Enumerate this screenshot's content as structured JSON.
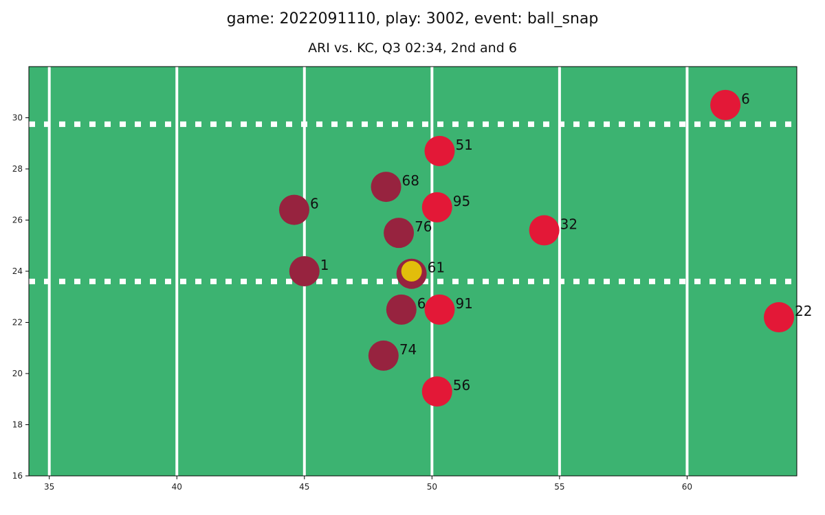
{
  "chart_data": {
    "type": "scatter",
    "title": "game: 2022091110, play: 3002, event: ball_snap",
    "subtitle": "ARI vs. KC, Q3 02:34, 2nd and 6",
    "xlim": [
      34.2,
      64.3
    ],
    "ylim": [
      16,
      32
    ],
    "xticks": [
      35,
      40,
      45,
      50,
      55,
      60
    ],
    "yticks": [
      16,
      18,
      20,
      22,
      24,
      26,
      28,
      30
    ],
    "yard_lines": [
      35,
      40,
      45,
      50,
      55,
      60
    ],
    "hash_lines": [
      23.6,
      29.75
    ],
    "grid": false,
    "colors": {
      "field": "#3cb371",
      "lines": "#ffffff",
      "home": "#97233f",
      "away": "#e31837",
      "ball": "#e2bd0b"
    },
    "series": [
      {
        "team": "home",
        "points": [
          {
            "x": 44.6,
            "y": 26.4,
            "label": "6"
          },
          {
            "x": 45.0,
            "y": 24.0,
            "label": "1"
          },
          {
            "x": 48.2,
            "y": 27.3,
            "label": "68"
          },
          {
            "x": 48.7,
            "y": 25.5,
            "label": "76"
          },
          {
            "x": 49.2,
            "y": 23.9,
            "label": "61"
          },
          {
            "x": 48.8,
            "y": 22.5,
            "label": "64"
          },
          {
            "x": 48.1,
            "y": 20.7,
            "label": "74"
          }
        ]
      },
      {
        "team": "away",
        "points": [
          {
            "x": 61.5,
            "y": 30.5,
            "label": "6"
          },
          {
            "x": 50.3,
            "y": 28.7,
            "label": "51"
          },
          {
            "x": 50.2,
            "y": 26.5,
            "label": "95"
          },
          {
            "x": 54.4,
            "y": 25.6,
            "label": "32"
          },
          {
            "x": 50.3,
            "y": 22.5,
            "label": "91"
          },
          {
            "x": 63.6,
            "y": 22.2,
            "label": "22"
          },
          {
            "x": 50.2,
            "y": 19.3,
            "label": "56"
          }
        ]
      }
    ],
    "ball": {
      "x": 49.2,
      "y": 24.0
    }
  }
}
